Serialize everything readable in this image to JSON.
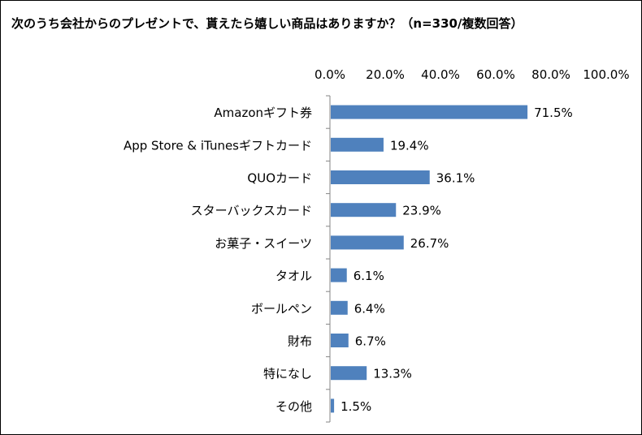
{
  "chart_data": {
    "type": "bar",
    "orientation": "horizontal",
    "title": "次のうち会社からのプレゼントで、貰えたら嬉しい商品はありますか？（n=330/複数回答）",
    "categories": [
      "Amazonギフト券",
      "App Store & iTunesギフトカード",
      "QUOカード",
      "スターバックスカード",
      "お菓子・スイーツ",
      "タオル",
      "ボールペン",
      "財布",
      "特になし",
      "その他"
    ],
    "values": [
      71.5,
      19.4,
      36.1,
      23.9,
      26.7,
      6.1,
      6.4,
      6.7,
      13.3,
      1.5
    ],
    "value_labels": [
      "71.5%",
      "19.4%",
      "36.1%",
      "23.9%",
      "26.7%",
      "6.1%",
      "6.4%",
      "6.7%",
      "13.3%",
      "1.5%"
    ],
    "x_ticks": [
      "0.0%",
      "20.0%",
      "40.0%",
      "60.0%",
      "80.0%",
      "100.0%"
    ],
    "xlim": [
      0,
      100
    ],
    "x_axis_position": "top",
    "grid": false,
    "bar_color": "#4f81bd"
  }
}
